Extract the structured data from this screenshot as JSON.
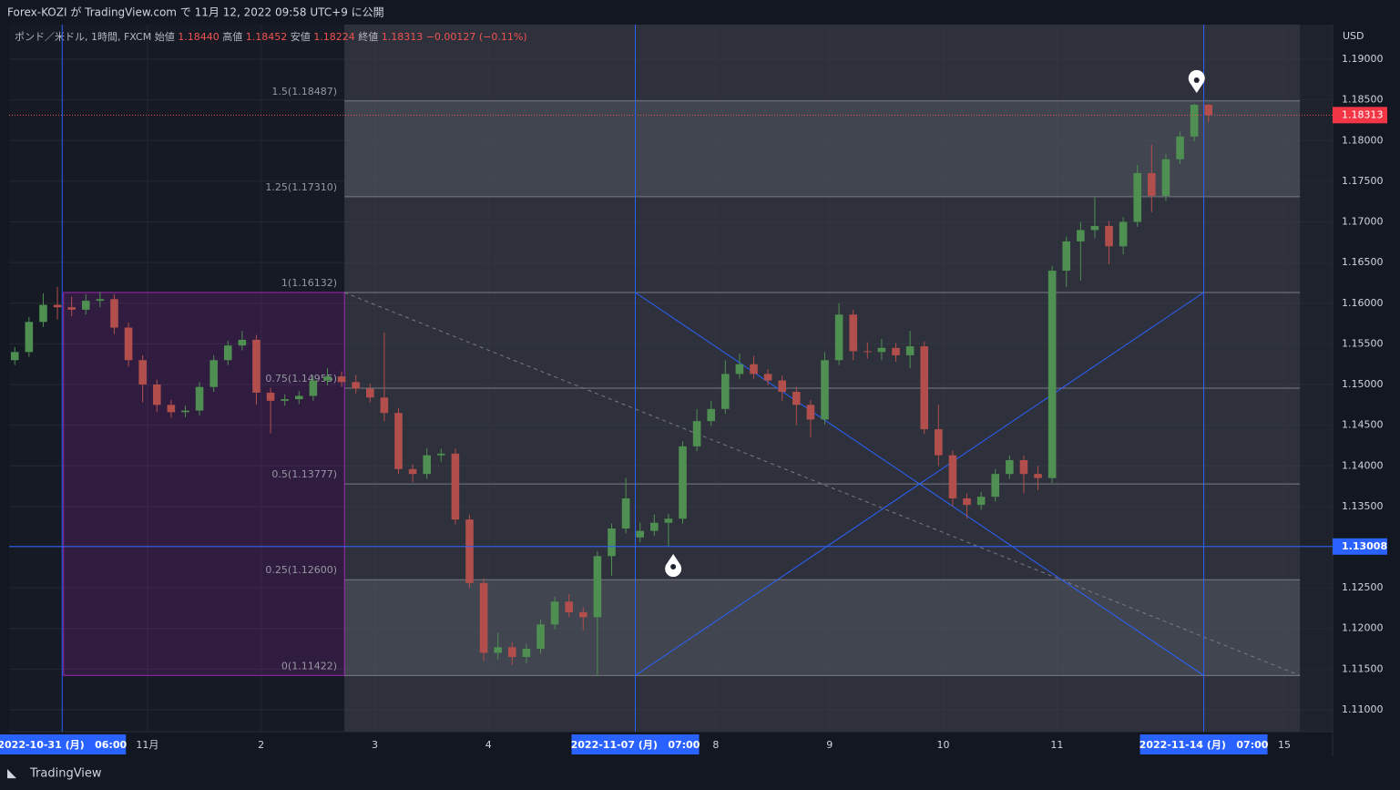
{
  "page": {
    "publish_note": "Forex-KOZI が TradingView.com で 11月 12, 2022 09:58 UTC+9 に公開",
    "brand": "TradingView"
  },
  "chart_data": {
    "type": "candlestick",
    "legend": {
      "symbol": "ポンド／米ドル, 1時間, FXCM",
      "fields": [
        {
          "name": "始値",
          "value": "1.18440"
        },
        {
          "name": "高値",
          "value": "1.18452"
        },
        {
          "name": "安値",
          "value": "1.18224"
        },
        {
          "name": "終値",
          "value": "1.18313"
        }
      ],
      "change": "−0.00127 (−0.11%)"
    },
    "y_unit": "USD",
    "x": [
      -4,
      -1,
      2,
      5,
      8,
      11,
      14,
      17,
      20,
      23,
      26,
      29,
      32,
      35,
      38,
      41,
      44,
      47,
      50,
      53,
      56,
      59,
      62,
      65,
      68,
      71,
      74,
      77,
      80,
      83,
      86,
      89,
      92,
      95,
      98,
      101,
      104,
      107,
      110,
      113,
      116,
      119,
      122,
      125,
      128,
      131,
      134,
      137,
      140,
      143,
      146,
      149,
      152,
      155,
      158,
      161,
      164,
      167,
      170,
      173,
      176,
      179,
      182,
      185,
      188,
      191,
      194,
      197,
      200,
      203,
      206,
      209,
      212,
      215,
      218,
      221,
      224,
      227,
      230,
      233,
      236,
      239,
      242,
      245,
      248
    ],
    "candles": [
      [
        1.153,
        1.1546,
        1.1524,
        1.154
      ],
      [
        1.154,
        1.1583,
        1.1534,
        1.1577
      ],
      [
        1.1577,
        1.1612,
        1.1571,
        1.1598
      ],
      [
        1.1598,
        1.162,
        1.158,
        1.1595
      ],
      [
        1.1595,
        1.1608,
        1.1584,
        1.1592
      ],
      [
        1.1592,
        1.1611,
        1.1586,
        1.1603
      ],
      [
        1.1603,
        1.1614,
        1.1595,
        1.1605
      ],
      [
        1.1605,
        1.1611,
        1.1562,
        1.157
      ],
      [
        1.157,
        1.1576,
        1.1522,
        1.153
      ],
      [
        1.153,
        1.1536,
        1.1478,
        1.15
      ],
      [
        1.15,
        1.1506,
        1.1466,
        1.1475
      ],
      [
        1.1475,
        1.1481,
        1.1459,
        1.1466
      ],
      [
        1.1466,
        1.1474,
        1.146,
        1.1468
      ],
      [
        1.1468,
        1.1503,
        1.1462,
        1.1497
      ],
      [
        1.1497,
        1.1536,
        1.1491,
        1.153
      ],
      [
        1.153,
        1.1554,
        1.1524,
        1.1548
      ],
      [
        1.1548,
        1.1566,
        1.1542,
        1.1555
      ],
      [
        1.1555,
        1.1561,
        1.1475,
        1.149
      ],
      [
        1.149,
        1.1496,
        1.144,
        1.148
      ],
      [
        1.148,
        1.1488,
        1.1474,
        1.1482
      ],
      [
        1.1482,
        1.1492,
        1.1476,
        1.1486
      ],
      [
        1.1486,
        1.1511,
        1.148,
        1.1505
      ],
      [
        1.1505,
        1.152,
        1.1499,
        1.151
      ],
      [
        1.151,
        1.1516,
        1.1497,
        1.1503
      ],
      [
        1.1503,
        1.1512,
        1.1489,
        1.1495
      ],
      [
        1.1495,
        1.1501,
        1.1478,
        1.1484
      ],
      [
        1.1484,
        1.1564,
        1.1455,
        1.1465
      ],
      [
        1.1465,
        1.1471,
        1.139,
        1.1396
      ],
      [
        1.1396,
        1.1402,
        1.138,
        1.139
      ],
      [
        1.139,
        1.1422,
        1.1384,
        1.1413
      ],
      [
        1.1413,
        1.1421,
        1.1405,
        1.1415
      ],
      [
        1.1415,
        1.1421,
        1.1328,
        1.1334
      ],
      [
        1.1334,
        1.134,
        1.125,
        1.1256
      ],
      [
        1.1256,
        1.1262,
        1.116,
        1.117
      ],
      [
        1.117,
        1.1195,
        1.1162,
        1.1177
      ],
      [
        1.1177,
        1.1183,
        1.1155,
        1.1165
      ],
      [
        1.1165,
        1.1181,
        1.1157,
        1.1175
      ],
      [
        1.1175,
        1.1211,
        1.1169,
        1.1205
      ],
      [
        1.1205,
        1.1239,
        1.1199,
        1.1233
      ],
      [
        1.1233,
        1.1242,
        1.1214,
        1.122
      ],
      [
        1.122,
        1.1226,
        1.1198,
        1.1214
      ],
      [
        1.1214,
        1.1295,
        1.1142,
        1.1289
      ],
      [
        1.1289,
        1.1329,
        1.1265,
        1.1323
      ],
      [
        1.1323,
        1.1385,
        1.1317,
        1.136
      ],
      [
        1.1312,
        1.133,
        1.1306,
        1.132
      ],
      [
        1.132,
        1.134,
        1.1314,
        1.133
      ],
      [
        1.133,
        1.1341,
        1.1301,
        1.1335
      ],
      [
        1.1335,
        1.143,
        1.1329,
        1.1424
      ],
      [
        1.1424,
        1.147,
        1.1418,
        1.1455
      ],
      [
        1.1455,
        1.148,
        1.1449,
        1.147
      ],
      [
        1.147,
        1.153,
        1.1464,
        1.1513
      ],
      [
        1.1513,
        1.1538,
        1.1507,
        1.1525
      ],
      [
        1.1525,
        1.1535,
        1.1507,
        1.1513
      ],
      [
        1.1513,
        1.1519,
        1.1499,
        1.1505
      ],
      [
        1.1505,
        1.1511,
        1.148,
        1.1491
      ],
      [
        1.1491,
        1.1497,
        1.145,
        1.1475
      ],
      [
        1.1475,
        1.1481,
        1.1435,
        1.1457
      ],
      [
        1.1457,
        1.154,
        1.1451,
        1.153
      ],
      [
        1.153,
        1.16,
        1.1524,
        1.1586
      ],
      [
        1.1586,
        1.1592,
        1.153,
        1.1541
      ],
      [
        1.1541,
        1.1552,
        1.1532,
        1.154
      ],
      [
        1.154,
        1.1556,
        1.153,
        1.1545
      ],
      [
        1.1545,
        1.1551,
        1.1528,
        1.1536
      ],
      [
        1.1536,
        1.1566,
        1.152,
        1.1547
      ],
      [
        1.1547,
        1.1553,
        1.1439,
        1.1445
      ],
      [
        1.1445,
        1.1475,
        1.14,
        1.1413
      ],
      [
        1.1413,
        1.1419,
        1.135,
        1.136
      ],
      [
        1.136,
        1.1366,
        1.1335,
        1.1352
      ],
      [
        1.1352,
        1.1368,
        1.1346,
        1.1362
      ],
      [
        1.1362,
        1.1396,
        1.1356,
        1.139
      ],
      [
        1.139,
        1.1413,
        1.1384,
        1.1407
      ],
      [
        1.1407,
        1.1413,
        1.1366,
        1.139
      ],
      [
        1.139,
        1.14,
        1.137,
        1.1385
      ],
      [
        1.1385,
        1.1646,
        1.1379,
        1.164
      ],
      [
        1.164,
        1.1682,
        1.162,
        1.1676
      ],
      [
        1.1676,
        1.17,
        1.1628,
        1.169
      ],
      [
        1.169,
        1.173,
        1.168,
        1.1695
      ],
      [
        1.1695,
        1.1701,
        1.1648,
        1.167
      ],
      [
        1.167,
        1.1706,
        1.166,
        1.17
      ],
      [
        1.17,
        1.177,
        1.1694,
        1.176
      ],
      [
        1.176,
        1.1795,
        1.1712,
        1.1732
      ],
      [
        1.1732,
        1.1783,
        1.1726,
        1.1777
      ],
      [
        1.1777,
        1.1811,
        1.1771,
        1.1805
      ],
      [
        1.1805,
        1.18452,
        1.1799,
        1.1844
      ],
      [
        1.1844,
        1.18452,
        1.18224,
        1.18313
      ]
    ],
    "up_color": "#4f8f52",
    "down_color": "#b24f4c",
    "xlim": [
      -5.2,
      274.2
    ],
    "ylim": [
      1.10731,
      1.19426
    ],
    "xticks": [
      {
        "value": 24,
        "label": "11月"
      },
      2,
      3,
      4,
      8,
      9,
      10,
      11,
      15
    ],
    "xtick_hours": [
      24,
      48,
      72,
      96,
      144,
      168,
      192,
      216,
      264
    ],
    "time_markers": [
      {
        "value": 6,
        "label": "2022-10-31 (月)   06:00"
      },
      {
        "value": 127,
        "label": "2022-11-07 (月)   07:00"
      },
      {
        "value": 247,
        "label": "2022-11-14 (月)   07:00"
      }
    ],
    "yticks": [
      {
        "value": 1.19,
        "label": "1.19000"
      },
      {
        "value": 1.185,
        "label": "1.18500"
      },
      {
        "value": 1.18,
        "label": "1.18000"
      },
      {
        "value": 1.175,
        "label": "1.17500"
      },
      {
        "value": 1.17,
        "label": "1.17000"
      },
      {
        "value": 1.165,
        "label": "1.16500"
      },
      {
        "value": 1.16,
        "label": "1.16000"
      },
      {
        "value": 1.155,
        "label": "1.15500"
      },
      {
        "value": 1.15,
        "label": "1.15000"
      },
      {
        "value": 1.145,
        "label": "1.14500"
      },
      {
        "value": 1.14,
        "label": "1.14000"
      },
      {
        "value": 1.135,
        "label": "1.13500"
      },
      {
        "value": 1.13,
        "label": "1.13000"
      },
      {
        "value": 1.125,
        "label": "1.12500"
      },
      {
        "value": 1.12,
        "label": "1.12000"
      },
      {
        "value": 1.115,
        "label": "1.11500"
      },
      {
        "value": 1.11,
        "label": "1.11000"
      }
    ],
    "hline": {
      "value": 1.13008,
      "label": "1.13008"
    },
    "last_price": {
      "value": 1.18313,
      "label": "1.18313"
    },
    "fib_levels": [
      {
        "value": 1.18487,
        "label": "1.5(1.18487)"
      },
      {
        "value": 1.1731,
        "label": "1.25(1.17310)"
      },
      {
        "value": 1.16132,
        "label": "1(1.16132)"
      },
      {
        "value": 1.14955,
        "label": "0.75(1.14955)"
      },
      {
        "value": 1.13777,
        "label": "0.5(1.13777)"
      },
      {
        "value": 1.126,
        "label": "0.25(1.12600)"
      },
      {
        "value": 1.11422,
        "label": "0(1.11422)"
      }
    ],
    "grid": true
  }
}
